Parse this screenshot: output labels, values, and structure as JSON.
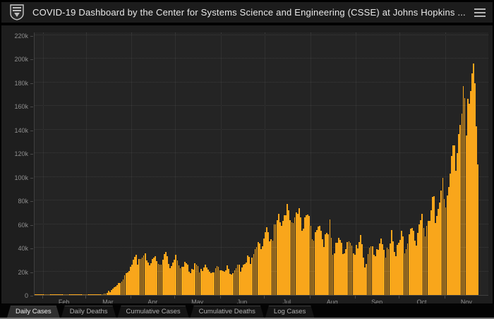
{
  "header": {
    "title": "COVID-19 Dashboard by the Center for Systems Science and Engineering (CSSE) at Johns Hopkins ...",
    "logo_icon": "johns-hopkins-shield",
    "menu_icon": "hamburger-menu"
  },
  "tabs": [
    {
      "label": "Daily Cases",
      "active": true
    },
    {
      "label": "Daily Deaths",
      "active": false
    },
    {
      "label": "Cumulative Cases",
      "active": false
    },
    {
      "label": "Cumulative Deaths",
      "active": false
    },
    {
      "label": "Log Cases",
      "active": false
    }
  ],
  "colors": {
    "bar": "#F9A61B",
    "plot_bg": "#242424",
    "card_bg": "#1E1E1E",
    "header_bg": "#1C1C1C",
    "page_bg": "#000000",
    "grid": "#3A3A3A",
    "axis_text": "#8F8F8F"
  },
  "chart_data": {
    "type": "bar",
    "series_name": "Daily Cases",
    "xlabel": "",
    "ylabel": "",
    "grid": true,
    "legend": "none",
    "ylim": [
      0,
      220000
    ],
    "y_tick_step": 20000,
    "y_tick_labels": [
      "0",
      "20k",
      "40k",
      "60k",
      "80k",
      "100k",
      "120k",
      "140k",
      "160k",
      "180k",
      "200k",
      "220k"
    ],
    "x_tick_labels": [
      "Feb",
      "Mar",
      "Apr",
      "May",
      "Jun",
      "Jul",
      "Aug",
      "Sep",
      "Oct",
      "Nov"
    ],
    "axis_total_days": 310,
    "month_start_day_index": [
      6,
      35,
      66,
      96,
      127,
      157,
      188,
      219,
      249,
      280
    ],
    "values": [
      1,
      2,
      0,
      3,
      4,
      3,
      3,
      2,
      4,
      3,
      2,
      3,
      4,
      2,
      3,
      4,
      2,
      5,
      3,
      4,
      2,
      3,
      4,
      3,
      2,
      4,
      20,
      2,
      3,
      19,
      7,
      2,
      6,
      4,
      8,
      7,
      24,
      21,
      77,
      111,
      148,
      213,
      338,
      305,
      554,
      698,
      816,
      1331,
      1219,
      1723,
      3847,
      2647,
      4286,
      5371,
      6334,
      7129,
      8433,
      9878,
      10272,
      11552,
      13206,
      16628,
      18700,
      19348,
      20242,
      24153,
      25900,
      30081,
      32133,
      34196,
      25717,
      30561,
      30613,
      31709,
      33752,
      35527,
      29468,
      27620,
      25023,
      26922,
      30317,
      31451,
      32922,
      29002,
      26071,
      25592,
      25985,
      29973,
      34800,
      36188,
      33165,
      26509,
      22541,
      24385,
      27327,
      29763,
      33955,
      29288,
      24972,
      22593,
      23841,
      24128,
      28369,
      26906,
      25621,
      19731,
      18601,
      22048,
      21467,
      27143,
      25508,
      24487,
      18873,
      21841,
      20254,
      23285,
      25434,
      23290,
      21614,
      19790,
      18611,
      18999,
      19122,
      22577,
      24266,
      23901,
      20724,
      21055,
      20400,
      19699,
      21140,
      25176,
      22317,
      17919,
      17598,
      18387,
      21148,
      22860,
      25641,
      25540,
      19920,
      23142,
      25555,
      26322,
      27762,
      33388,
      32411,
      26079,
      31402,
      34700,
      38672,
      40588,
      44602,
      43581,
      38800,
      41075,
      47655,
      52920,
      57236,
      53399,
      45300,
      47129,
      46329,
      60021,
      59628,
      63293,
      68867,
      61719,
      58349,
      62918,
      67417,
      67600,
      77255,
      71558,
      63201,
      61456,
      60971,
      65594,
      70106,
      68524,
      73715,
      65497,
      54448,
      56336,
      65935,
      67574,
      68032,
      67023,
      58429,
      47511,
      46321,
      53158,
      55148,
      57709,
      58611,
      54134,
      46990,
      40522,
      51514,
      52799,
      51443,
      64107,
      48693,
      34354,
      35112,
      43957,
      44023,
      48375,
      46393,
      44110,
      34567,
      35500,
      38986,
      44724,
      45341,
      44023,
      41893,
      35267,
      33930,
      42597,
      39711,
      44639,
      50618,
      43142,
      31891,
      23314,
      26083,
      34387,
      39970,
      41516,
      41117,
      33871,
      32919,
      38807,
      38552,
      43772,
      47823,
      42813,
      38369,
      31521,
      39832,
      38904,
      43898,
      55110,
      45300,
      36542,
      33164,
      42184,
      44206,
      46622,
      54247,
      49437,
      35374,
      39087,
      43556,
      51382,
      56191,
      57005,
      54684,
      46128,
      41653,
      52394,
      59494,
      63610,
      68822,
      57094,
      49361,
      58387,
      62839,
      62775,
      71671,
      82929,
      83718,
      60789,
      66798,
      73240,
      78358,
      88521,
      99321,
      81227,
      74272,
      84462,
      91530,
      102831,
      117988,
      126480,
      126742,
      105519,
      119959,
      136325,
      144270,
      153496,
      177224,
      166555,
      135187,
      166045,
      161934,
      172935,
      187833,
      196004,
      179617,
      142861,
      110489
    ]
  }
}
